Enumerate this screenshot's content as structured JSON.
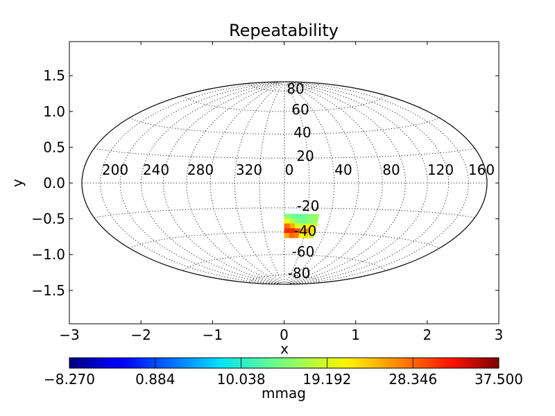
{
  "chart_data": {
    "type": "heatmap",
    "projection": "hammer",
    "title": "Repeatability",
    "xlabel": "x",
    "ylabel": "y",
    "xlim": [
      -3,
      3
    ],
    "ylim": [
      -1.95,
      1.95
    ],
    "xticks": [
      "−3",
      "−2",
      "−1",
      "0",
      "1",
      "2",
      "3"
    ],
    "yticks": [
      "1.5",
      "1.0",
      "0.5",
      "0.0",
      "−0.5",
      "−1.0",
      "−1.5"
    ],
    "meridian_labels": [
      "200",
      "240",
      "280",
      "320",
      "0",
      "40",
      "80",
      "120",
      "160"
    ],
    "parallel_labels": [
      "80",
      "60",
      "40",
      "20",
      "-20",
      "-40",
      "-60",
      "-80"
    ],
    "colorbar": {
      "label": "mmag",
      "min": -8.27,
      "max": 37.5,
      "ticks": [
        "−8.270",
        "0.884",
        "10.038",
        "19.192",
        "28.346",
        "37.500"
      ],
      "colormap": "jet"
    },
    "data_region": {
      "ra_range": [
        0,
        30
      ],
      "dec_range": [
        -45,
        -25
      ],
      "approx_values_mmag": [
        [
          15,
          14,
          13,
          14,
          15,
          16
        ],
        [
          20,
          17,
          15,
          14,
          15,
          16
        ],
        [
          27,
          24,
          19,
          18,
          21,
          19
        ],
        [
          30,
          30,
          28,
          24,
          26,
          22
        ],
        [
          24,
          27,
          26,
          20,
          22,
          18
        ]
      ]
    },
    "grid": true
  }
}
